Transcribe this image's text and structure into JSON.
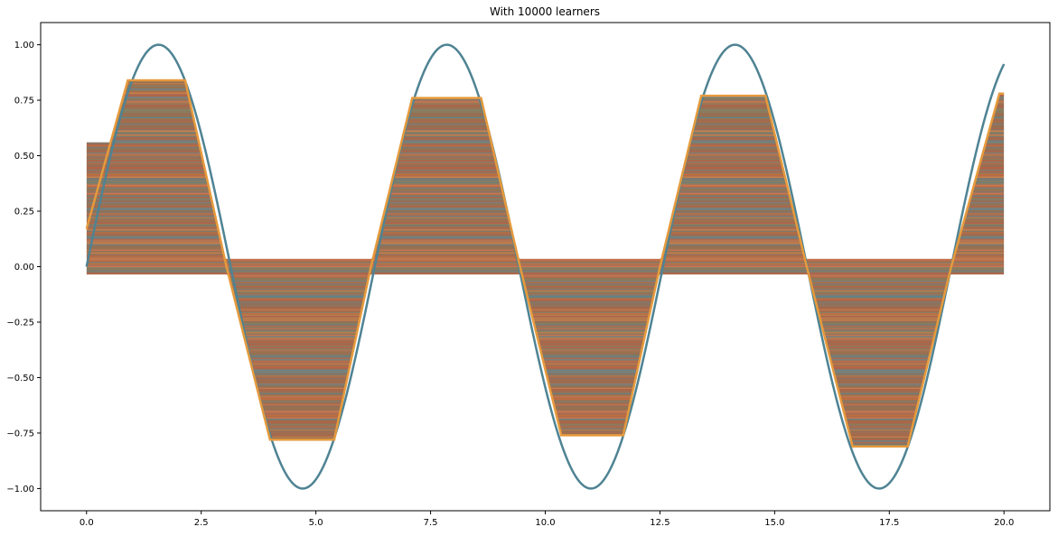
{
  "chart_data": {
    "type": "line",
    "title": "With 10000 learners",
    "xlabel": "",
    "ylabel": "",
    "xlim": [
      -1.0,
      21.0
    ],
    "ylim": [
      -1.1,
      1.1
    ],
    "xticks": [
      0.0,
      2.5,
      5.0,
      7.5,
      10.0,
      12.5,
      15.0,
      17.5,
      20.0
    ],
    "yticks": [
      -1.0,
      -0.75,
      -0.5,
      -0.25,
      0.0,
      0.25,
      0.5,
      0.75,
      1.0
    ],
    "xtick_labels": [
      "0.0",
      "2.5",
      "5.0",
      "7.5",
      "10.0",
      "12.5",
      "15.0",
      "17.5",
      "20.0"
    ],
    "ytick_labels": [
      "−1.00",
      "−0.75",
      "−0.50",
      "−0.25",
      "0.00",
      "0.25",
      "0.50",
      "0.75",
      "1.00"
    ],
    "grid": false,
    "legend": "none",
    "series": [
      {
        "role": "target",
        "function": "sin(x)",
        "x_range": [
          0.0,
          20.0
        ],
        "color": "#4f8393"
      },
      {
        "role": "ensemble-prediction",
        "color": "#e69a3c",
        "x": [
          0.0,
          0.9,
          2.15,
          3.05,
          4.0,
          5.4,
          6.2,
          7.1,
          8.6,
          9.45,
          10.35,
          11.7,
          12.5,
          13.4,
          14.8,
          15.7,
          16.7,
          17.9,
          18.85,
          19.9,
          20.0
        ],
        "y": [
          0.17,
          0.84,
          0.84,
          0.0,
          -0.78,
          -0.78,
          0.0,
          0.76,
          0.76,
          0.0,
          -0.76,
          -0.76,
          0.0,
          0.77,
          0.77,
          0.0,
          -0.81,
          -0.81,
          0.0,
          0.78,
          0.78
        ]
      }
    ],
    "learner_bands": {
      "count": 10000,
      "palette": [
        "#c7593f",
        "#e08a4a",
        "#5b8e9e",
        "#8c7257",
        "#b86a4f",
        "#7a8a6e",
        "#d46a3a",
        "#6e7f86",
        "#a3684d",
        "#e07a52",
        "#4f8a9a",
        "#9a7456"
      ],
      "base_color": "#9a6f52"
    }
  }
}
